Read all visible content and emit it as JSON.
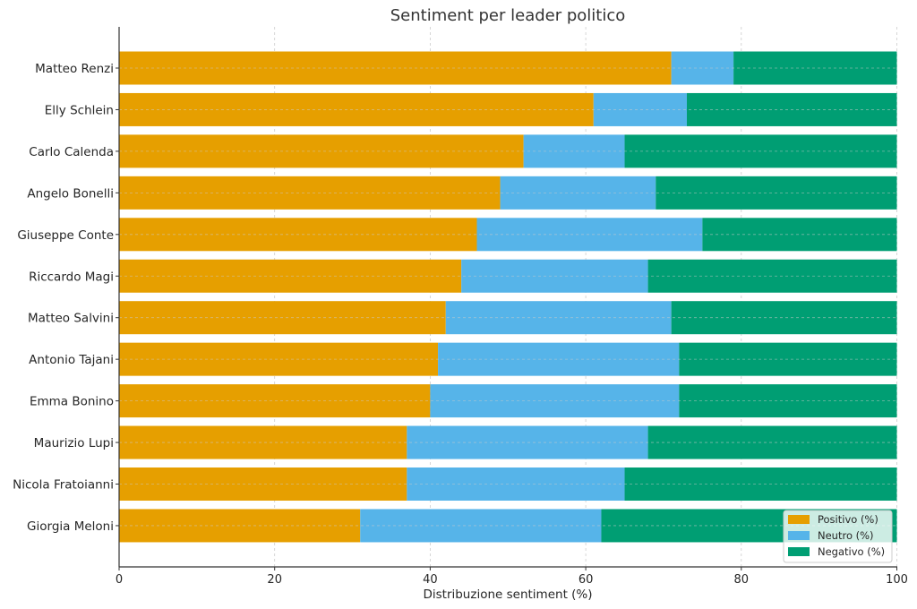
{
  "chart_data": {
    "type": "bar",
    "orientation": "horizontal",
    "stacked": true,
    "title": "Sentiment per leader politico",
    "xlabel": "Distribuzione sentiment (%)",
    "ylabel": "",
    "xlim": [
      0,
      100
    ],
    "xticks": [
      0,
      20,
      40,
      60,
      80,
      100
    ],
    "grid": true,
    "legend_position": "bottom-right",
    "categories": [
      "Matteo Renzi",
      "Elly Schlein",
      "Carlo Calenda",
      "Angelo Bonelli",
      "Giuseppe Conte",
      "Riccardo Magi",
      "Matteo Salvini",
      "Antonio Tajani",
      "Emma Bonino",
      "Maurizio Lupi",
      "Nicola Fratoianni",
      "Giorgia Meloni"
    ],
    "series": [
      {
        "name": "Positivo (%)",
        "color": "#E69F00",
        "values": [
          71,
          61,
          52,
          49,
          46,
          44,
          42,
          41,
          40,
          37,
          37,
          31
        ]
      },
      {
        "name": "Neutro (%)",
        "color": "#56B4E9",
        "values": [
          8,
          12,
          13,
          20,
          29,
          24,
          29,
          31,
          32,
          31,
          28,
          31
        ]
      },
      {
        "name": "Negativo (%)",
        "color": "#009E73",
        "values": [
          21,
          27,
          35,
          31,
          25,
          32,
          29,
          28,
          28,
          32,
          35,
          38
        ]
      }
    ]
  }
}
